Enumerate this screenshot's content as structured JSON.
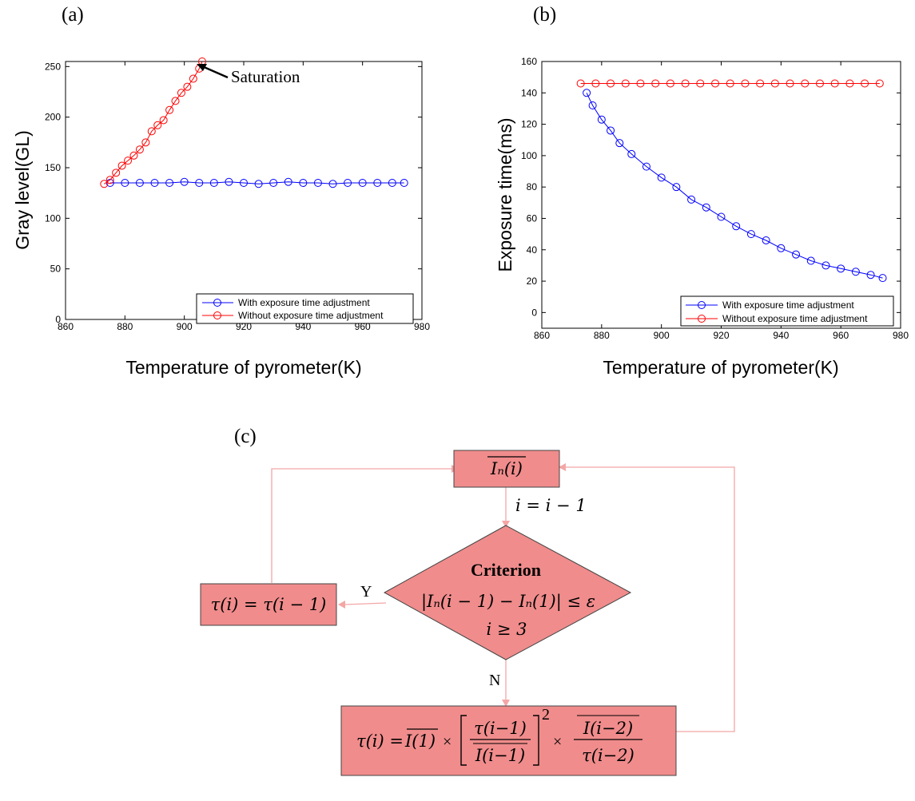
{
  "panels": {
    "a": {
      "label": "(a)"
    },
    "b": {
      "label": "(b)"
    },
    "c": {
      "label": "(c)"
    }
  },
  "colors": {
    "series_blue": "#0000ff",
    "series_red": "#ff0000",
    "flow_fill": "#f08c8c",
    "flow_line": "#f4a6a6"
  },
  "chart_data": [
    {
      "type": "line",
      "xlabel": "Temperature of pyrometer(K)",
      "ylabel": "Gray level(GL)",
      "xlim": [
        860,
        980
      ],
      "ylim": [
        0,
        255
      ],
      "xticks": [
        "860",
        "880",
        "900",
        "920",
        "940",
        "960",
        "980"
      ],
      "yticks": [
        "0",
        "50",
        "100",
        "150",
        "200",
        "250"
      ],
      "legend_position": "bottom-right",
      "annotation": "Saturation",
      "series": [
        {
          "name": "With exposure time adjustment",
          "color": "#0000ff",
          "marker": "circle",
          "x": [
            875,
            880,
            885,
            890,
            895,
            900,
            905,
            910,
            915,
            920,
            925,
            930,
            935,
            940,
            945,
            950,
            955,
            960,
            965,
            970,
            974
          ],
          "y": [
            135,
            135,
            135,
            135,
            135,
            136,
            135,
            135,
            136,
            135,
            134,
            135,
            136,
            135,
            135,
            134,
            135,
            135,
            135,
            135,
            135
          ]
        },
        {
          "name": "Without exposure time adjustment",
          "color": "#ff0000",
          "marker": "circle",
          "x": [
            873,
            875,
            877,
            879,
            881,
            883,
            885,
            887,
            889,
            891,
            893,
            895,
            897,
            899,
            901,
            903,
            905,
            906
          ],
          "y": [
            134,
            138,
            145,
            152,
            157,
            162,
            168,
            175,
            186,
            192,
            197,
            207,
            216,
            224,
            230,
            238,
            248,
            255
          ]
        }
      ]
    },
    {
      "type": "line",
      "xlabel": "Temperature of pyrometer(K)",
      "ylabel": "Exposure time(ms)",
      "xlim": [
        860,
        980
      ],
      "ylim": [
        -10,
        160
      ],
      "xticks": [
        "860",
        "880",
        "900",
        "920",
        "940",
        "960",
        "980"
      ],
      "yticks": [
        "0",
        "20",
        "40",
        "60",
        "80",
        "100",
        "120",
        "140",
        "160"
      ],
      "legend_position": "bottom-right",
      "series": [
        {
          "name": "With exposure time adjustment",
          "color": "#0000ff",
          "marker": "circle",
          "x": [
            875,
            877,
            880,
            883,
            886,
            890,
            895,
            900,
            905,
            910,
            915,
            920,
            925,
            930,
            935,
            940,
            945,
            950,
            955,
            960,
            965,
            970,
            974
          ],
          "y": [
            140,
            132,
            123,
            116,
            108,
            101,
            93,
            86,
            80,
            72,
            67,
            61,
            55,
            50,
            46,
            41,
            37,
            33,
            30,
            28,
            26,
            24,
            22
          ]
        },
        {
          "name": "Without exposure time adjustment",
          "color": "#ff0000",
          "marker": "circle",
          "x": [
            873,
            878,
            883,
            888,
            893,
            898,
            903,
            908,
            913,
            918,
            923,
            928,
            933,
            938,
            943,
            948,
            953,
            958,
            963,
            968,
            973
          ],
          "y": [
            146,
            146,
            146,
            146,
            146,
            146,
            146,
            146,
            146,
            146,
            146,
            146,
            146,
            146,
            146,
            146,
            146,
            146,
            146,
            146,
            146
          ]
        }
      ]
    }
  ],
  "flowchart": {
    "top_box": "Iₙ(i)",
    "step": "i = i − 1",
    "criterion_title": "Criterion",
    "criterion_line1": "|Iₙ(i − 1) − Iₙ(1)| ≤ ε",
    "criterion_line2": "i ≥ 3",
    "yes_label": "Y",
    "no_label": "N",
    "yes_box": "τ(i) = τ(i − 1)",
    "formula_lhs": "τ(i) = ",
    "formula_I1": "I(1)",
    "formula_frac1_num": "τ(i−1)",
    "formula_frac1_den": "I(i−1)",
    "formula_exp": "2",
    "formula_frac2_num": "I(i−2)",
    "formula_frac2_den": "τ(i−2)",
    "times": "×"
  }
}
